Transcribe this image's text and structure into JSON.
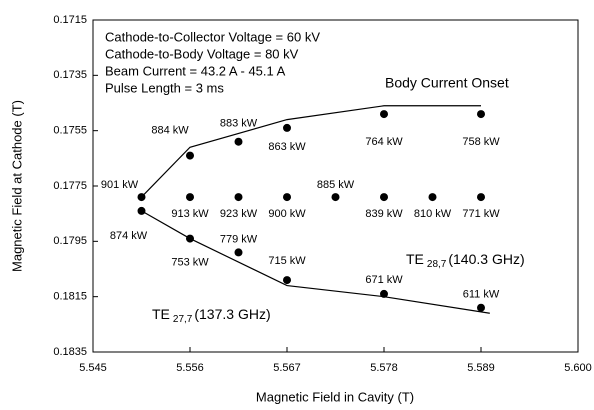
{
  "chart_data": {
    "type": "scatter",
    "x_label": "Magnetic Field in Cavity (T)",
    "y_label": "Magnetic Field at Cathode (T)",
    "xlim": [
      5.545,
      5.6
    ],
    "xticks": [
      5.545,
      5.556,
      5.567,
      5.578,
      5.589,
      {
        "value": 5.6,
        "label": "5.600"
      }
    ],
    "ylim": [
      0.1715,
      0.1835
    ],
    "yticks": [
      0.1715,
      0.1735,
      0.1755,
      0.1775,
      0.1795,
      0.1815,
      0.1835
    ],
    "y_inverted": true,
    "color": "#000000",
    "points": {
      "x": [
        5.5505,
        5.5505,
        5.556,
        5.5615,
        5.567,
        5.578,
        5.589,
        5.556,
        5.5615,
        5.567,
        5.5725,
        5.578,
        5.5835,
        5.589,
        5.556,
        5.5615,
        5.567,
        5.578,
        5.589
      ],
      "y": [
        0.1779,
        0.1784,
        0.1764,
        0.1759,
        0.1754,
        0.1749,
        0.1749,
        0.1779,
        0.1779,
        0.1779,
        0.1779,
        0.1779,
        0.1779,
        0.1779,
        0.1794,
        0.1799,
        0.1809,
        0.1814,
        0.1819
      ],
      "labels": [
        "901 kW",
        "874 kW",
        "884 kW",
        "883 kW",
        "863 kW",
        "764 kW",
        "758 kW",
        "913 kW",
        "923 kW",
        "900 kW",
        "885 kW",
        "839 kW",
        "810 kW",
        "771 kW",
        "753 kW",
        "779 kW",
        "715 kW",
        "671 kW",
        "611 kW"
      ]
    },
    "lines": [
      {
        "name": "Body Current Onset",
        "x": [
          5.5505,
          5.556,
          5.567,
          5.578,
          5.589
        ],
        "y": [
          0.1779,
          0.1761,
          0.1751,
          0.1746,
          0.1746
        ]
      },
      {
        "x": [
          5.5505,
          5.556,
          5.567,
          5.578,
          5.59
        ],
        "y": [
          0.1784,
          0.1794,
          0.1811,
          0.1815,
          0.1821
        ]
      }
    ],
    "notes": [
      "Cathode-to-Collector Voltage = 60 kV",
      "Cathode-to-Body Voltage =  80 kV",
      "Beam Current = 43.2  A - 45.1 A",
      "Pulse Length = 3 ms"
    ],
    "modes": [
      {
        "name": "TE",
        "sub": "28,7",
        "freq": "(140.3 GHz)"
      },
      {
        "name": "TE",
        "sub": "27,7",
        "freq": "(137.3 GHz)"
      }
    ]
  }
}
